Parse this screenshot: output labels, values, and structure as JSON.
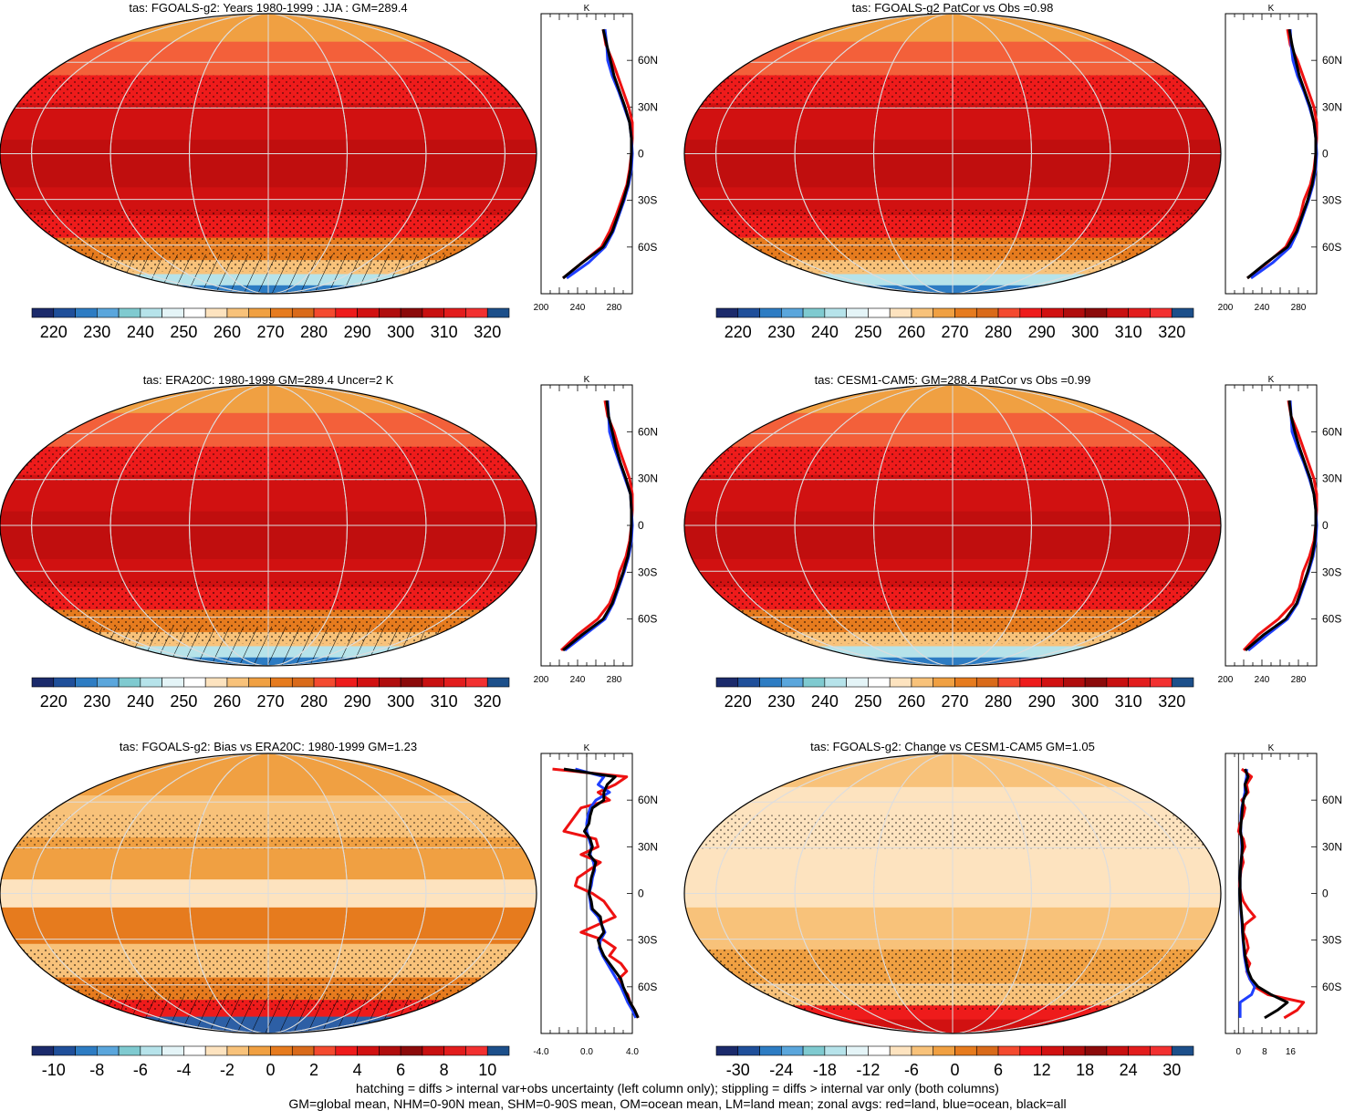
{
  "colorbars": {
    "absolute": {
      "labels": [
        "220",
        "230",
        "240",
        "250",
        "260",
        "270",
        "280",
        "290",
        "300",
        "310",
        "320"
      ],
      "colors": [
        "#1b2a6b",
        "#1f4f9a",
        "#2d7cc3",
        "#5aa6dc",
        "#7fcad0",
        "#b6e3ea",
        "#e4f4f7",
        "#ffffff",
        "#fde3bf",
        "#f8c27a",
        "#f0a042",
        "#e67b1e",
        "#d96a1a",
        "#f44a2f",
        "#ee1b1b",
        "#d11111",
        "#b00d0d",
        "#8b0a0a",
        "#c81010",
        "#e21c1c",
        "#f23030",
        "#1c4f8a"
      ]
    },
    "bias": {
      "labels": [
        "-10",
        "-8",
        "-6",
        "-4",
        "-2",
        "0",
        "2",
        "4",
        "6",
        "8",
        "10"
      ],
      "colors": [
        "#1b2a6b",
        "#1f4f9a",
        "#2d7cc3",
        "#5aa6dc",
        "#7fcad0",
        "#b6e3ea",
        "#e4f4f7",
        "#ffffff",
        "#fde3bf",
        "#f8c27a",
        "#f0a042",
        "#e67b1e",
        "#d96a1a",
        "#f44a2f",
        "#ee1b1b",
        "#d11111",
        "#b00d0d",
        "#8b0a0a",
        "#c81010",
        "#e21c1c",
        "#f23030",
        "#1c4f8a"
      ]
    },
    "change": {
      "labels": [
        "-30",
        "-24",
        "-18",
        "-12",
        "-6",
        "0",
        "6",
        "12",
        "18",
        "24",
        "30"
      ],
      "colors": [
        "#1b2a6b",
        "#1f4f9a",
        "#2d7cc3",
        "#5aa6dc",
        "#7fcad0",
        "#b6e3ea",
        "#e4f4f7",
        "#ffffff",
        "#fde3bf",
        "#f8c27a",
        "#f0a042",
        "#e67b1e",
        "#d96a1a",
        "#f44a2f",
        "#ee1b1b",
        "#d11111",
        "#b00d0d",
        "#8b0a0a",
        "#c81010",
        "#e21c1c",
        "#f23030",
        "#1c4f8a"
      ]
    }
  },
  "latitude_labels": [
    "60N",
    "30N",
    "0",
    "30S",
    "60S"
  ],
  "unit_label": "K",
  "chart_data": [
    {
      "type": "heatmap",
      "title": "tas: FGOALS-g2: Years 1980-1999 : JJA : GM=289.4",
      "colorbar": "absolute",
      "zonal_profile": {
        "xlim": [
          200,
          300
        ],
        "xticks": [
          "200",
          "240",
          "280"
        ],
        "lat": [
          80,
          70,
          60,
          50,
          40,
          30,
          20,
          10,
          0,
          -10,
          -20,
          -30,
          -40,
          -50,
          -60,
          -70,
          -80
        ],
        "all": [
          268,
          272,
          276,
          280,
          286,
          292,
          297,
          299,
          299,
          298,
          295,
          290,
          284,
          278,
          268,
          245,
          224
        ],
        "land": [
          268,
          271,
          278,
          284,
          290,
          296,
          300,
          300,
          299,
          297,
          294,
          288,
          282,
          275,
          266,
          245,
          224
        ],
        "ocean": [
          270,
          272,
          273,
          278,
          285,
          291,
          297,
          299,
          300,
          299,
          296,
          291,
          285,
          279,
          270,
          252,
          228
        ]
      }
    },
    {
      "type": "heatmap",
      "title": "tas: FGOALS-g2 PatCor vs Obs =0.98",
      "colorbar": "absolute",
      "zonal_profile": {
        "xlim": [
          200,
          300
        ],
        "xticks": [
          "200",
          "240",
          "280"
        ],
        "lat": [
          80,
          70,
          60,
          50,
          40,
          30,
          20,
          10,
          0,
          -10,
          -20,
          -30,
          -40,
          -50,
          -60,
          -70,
          -80
        ],
        "all": [
          270,
          273,
          277,
          281,
          287,
          293,
          297,
          299,
          299,
          298,
          295,
          290,
          284,
          278,
          268,
          245,
          224
        ],
        "land": [
          268,
          271,
          279,
          285,
          291,
          297,
          300,
          300,
          299,
          297,
          293,
          286,
          282,
          275,
          266,
          246,
          224
        ],
        "ocean": [
          271,
          272,
          274,
          279,
          286,
          292,
          297,
          299,
          300,
          299,
          296,
          291,
          285,
          279,
          271,
          252,
          228
        ]
      }
    },
    {
      "type": "heatmap",
      "title": "tas: ERA20C: 1980-1999 GM=289.4 Uncer=2 K",
      "colorbar": "absolute",
      "zonal_profile": {
        "xlim": [
          200,
          300
        ],
        "xticks": [
          "200",
          "240",
          "280"
        ],
        "lat": [
          80,
          70,
          60,
          50,
          40,
          30,
          20,
          10,
          0,
          -10,
          -20,
          -30,
          -40,
          -50,
          -60,
          -70,
          -80
        ],
        "all": [
          272,
          274,
          278,
          282,
          287,
          293,
          298,
          299,
          299,
          298,
          295,
          290,
          284,
          278,
          268,
          245,
          224
        ],
        "land": [
          270,
          273,
          280,
          285,
          291,
          297,
          300,
          300,
          299,
          297,
          293,
          286,
          282,
          275,
          262,
          240,
          222
        ],
        "ocean": [
          273,
          274,
          275,
          280,
          286,
          292,
          298,
          299,
          300,
          299,
          296,
          291,
          285,
          279,
          270,
          248,
          226
        ]
      }
    },
    {
      "type": "heatmap",
      "title": "tas: CESM1-CAM5: GM=288.4 PatCor vs Obs =0.99",
      "colorbar": "absolute",
      "zonal_profile": {
        "xlim": [
          200,
          300
        ],
        "xticks": [
          "200",
          "240",
          "280"
        ],
        "lat": [
          80,
          70,
          60,
          50,
          40,
          30,
          20,
          10,
          0,
          -10,
          -20,
          -30,
          -40,
          -50,
          -60,
          -70,
          -80
        ],
        "all": [
          270,
          272,
          276,
          281,
          287,
          293,
          297,
          299,
          299,
          298,
          295,
          290,
          284,
          278,
          266,
          242,
          222
        ],
        "land": [
          269,
          272,
          279,
          285,
          291,
          297,
          300,
          300,
          299,
          297,
          292,
          285,
          281,
          274,
          258,
          236,
          220
        ],
        "ocean": [
          271,
          272,
          273,
          279,
          286,
          292,
          297,
          299,
          300,
          299,
          296,
          291,
          285,
          279,
          268,
          246,
          225
        ]
      }
    },
    {
      "type": "heatmap",
      "title": "tas: FGOALS-g2: Bias vs ERA20C: 1980-1999 GM=1.23",
      "colorbar": "bias",
      "zonal_profile": {
        "xlim": [
          -4,
          4
        ],
        "xticks": [
          "-4.0",
          "0.0",
          "4.0"
        ],
        "lat": [
          80,
          75,
          70,
          65,
          60,
          55,
          50,
          45,
          40,
          35,
          30,
          25,
          20,
          15,
          10,
          5,
          0,
          -5,
          -10,
          -15,
          -20,
          -25,
          -30,
          -35,
          -40,
          -45,
          -50,
          -55,
          -60,
          -65,
          -70,
          -75,
          -80
        ],
        "all": [
          -2.0,
          2.5,
          1.8,
          1.5,
          1.5,
          0.5,
          0.3,
          0.2,
          -0.2,
          0.3,
          0.5,
          0.2,
          0.8,
          0.6,
          0.4,
          0.3,
          0.2,
          0.4,
          0.5,
          1.2,
          1.3,
          1.5,
          1.0,
          1.2,
          1.5,
          2.0,
          2.5,
          3.0,
          3.2,
          3.5,
          3.8,
          4.2,
          4.5
        ],
        "land": [
          -3.0,
          3.5,
          2.5,
          1.0,
          2.0,
          -0.5,
          -1.0,
          -1.5,
          -2.0,
          0.8,
          1.0,
          -0.5,
          1.2,
          0.2,
          -0.8,
          -1.0,
          0.5,
          1.5,
          2.0,
          2.5,
          1.0,
          -0.5,
          1.5,
          2.5,
          2.0,
          3.0,
          3.5,
          2.8,
          3.0,
          3.6,
          3.8,
          4.2,
          4.5
        ],
        "ocean": [
          -1.0,
          1.5,
          1.0,
          2.0,
          0.8,
          0.3,
          0.1,
          0.0,
          0.0,
          0.2,
          0.4,
          0.3,
          0.6,
          0.7,
          0.5,
          0.4,
          0.2,
          0.3,
          0.4,
          1.0,
          1.3,
          1.6,
          1.2,
          1.1,
          1.4,
          1.8,
          2.2,
          2.6,
          3.0,
          3.3,
          3.6,
          4.0,
          4.3
        ]
      }
    },
    {
      "type": "heatmap",
      "title": "tas: FGOALS-g2: Change vs CESM1-CAM5 GM=1.05",
      "colorbar": "change",
      "zonal_profile": {
        "xlim": [
          -4,
          24
        ],
        "xticks": [
          "0",
          "8",
          "16"
        ],
        "lat": [
          80,
          75,
          70,
          65,
          60,
          55,
          50,
          45,
          40,
          35,
          30,
          25,
          20,
          15,
          10,
          5,
          0,
          -5,
          -10,
          -15,
          -20,
          -25,
          -30,
          -35,
          -40,
          -45,
          -50,
          -55,
          -60,
          -65,
          -70,
          -75,
          -80
        ],
        "all": [
          2.0,
          3.0,
          2.0,
          2.5,
          1.5,
          1.2,
          1.0,
          0.8,
          0.6,
          1.0,
          1.2,
          1.0,
          0.8,
          0.6,
          0.5,
          0.5,
          0.5,
          0.6,
          0.8,
          1.0,
          1.2,
          1.3,
          1.5,
          1.8,
          2.0,
          2.5,
          3.0,
          4.0,
          6.0,
          10.0,
          15.0,
          12.0,
          8.0
        ],
        "land": [
          1.0,
          4.0,
          2.5,
          3.0,
          1.0,
          2.0,
          1.5,
          0.5,
          0.0,
          1.5,
          2.0,
          1.0,
          1.5,
          0.8,
          0.5,
          0.3,
          0.8,
          1.5,
          3.0,
          5.0,
          2.0,
          1.5,
          2.5,
          3.0,
          2.0,
          3.5,
          2.5,
          3.5,
          5.0,
          9.0,
          20.0,
          18.0,
          14.0
        ],
        "ocean": [
          2.5,
          2.5,
          2.0,
          2.0,
          1.5,
          1.0,
          0.8,
          0.8,
          0.7,
          0.9,
          1.0,
          1.0,
          0.8,
          0.6,
          0.5,
          0.5,
          0.5,
          0.6,
          0.7,
          0.9,
          1.1,
          1.2,
          1.4,
          1.6,
          1.8,
          2.2,
          2.6,
          3.5,
          5.0,
          4.0,
          0.5,
          0.5,
          0.5
        ]
      }
    }
  ],
  "footer": {
    "line1": "hatching = diffs > internal var+obs uncertainty (left column only); stippling = diffs > internal var only (both columns)",
    "line2": "GM=global mean, NHM=0-90N mean, SHM=0-90S mean, OM=ocean mean, LM=land mean; zonal avgs: red=land, blue=ocean, black=all"
  }
}
